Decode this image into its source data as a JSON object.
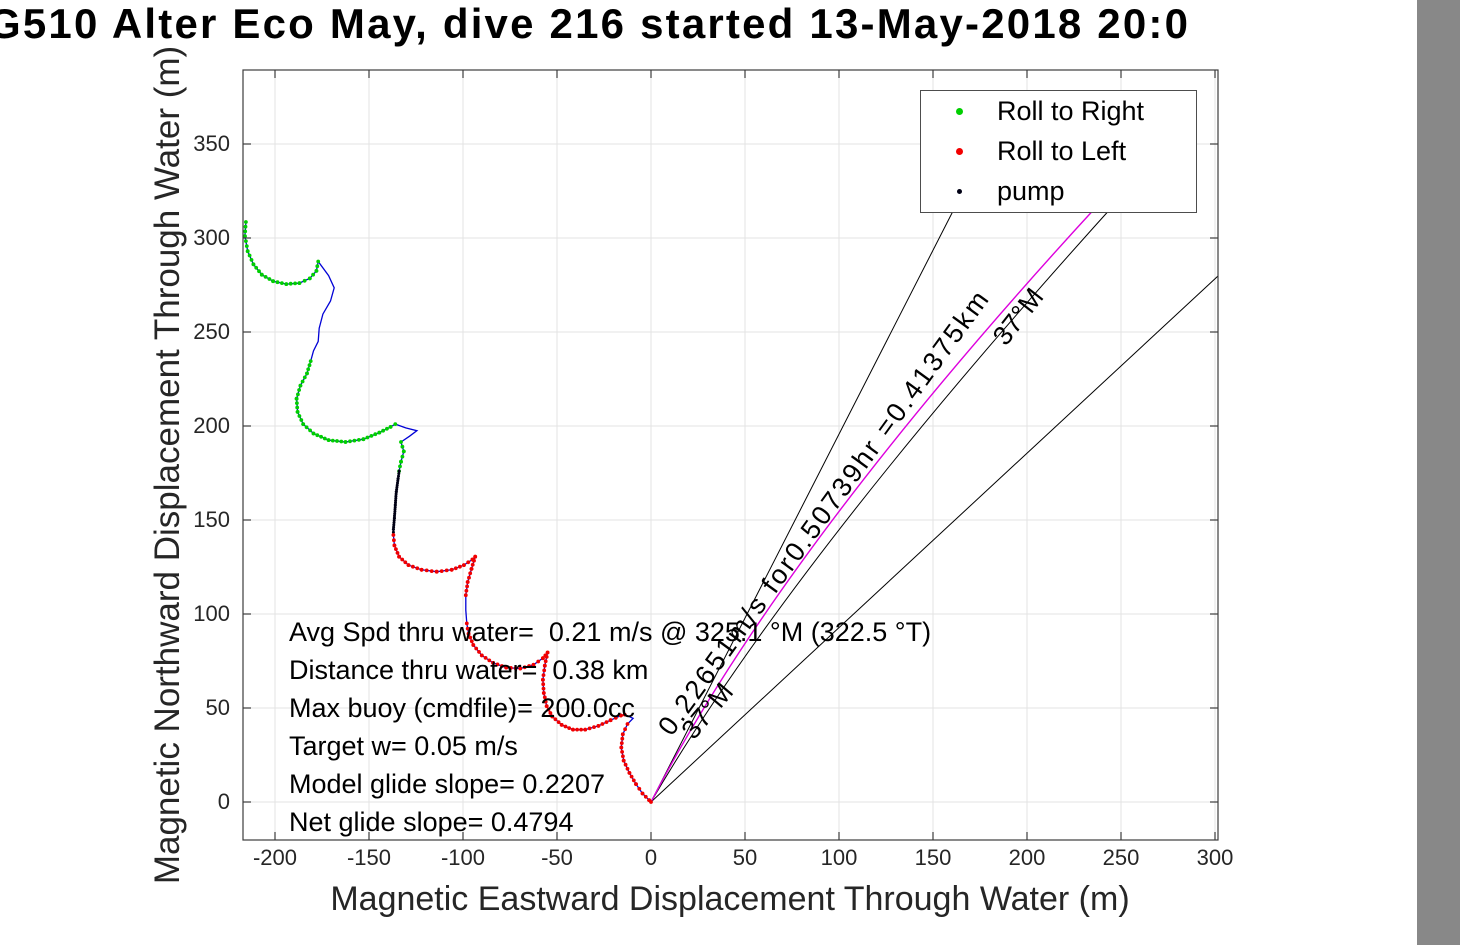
{
  "chart_data": {
    "type": "line",
    "title": "G510 Alter Eco May, dive 216 started 13-May-2018 20:0",
    "xlabel": "Magnetic Eastward Displacement Through Water (m)",
    "ylabel": "Magnetic Northward Displacement Through Water (m)",
    "xlim": [
      -216,
      302
    ],
    "ylim": [
      -20,
      389
    ],
    "grid": true,
    "x_ticks": [
      -200,
      -150,
      -100,
      -50,
      0,
      50,
      100,
      150,
      200,
      250,
      300
    ],
    "y_ticks": [
      0,
      50,
      100,
      150,
      200,
      250,
      300,
      350
    ],
    "legend": {
      "position": "northeast",
      "items": [
        {
          "label": "Roll to Right",
          "color": "#00cf00"
        },
        {
          "label": "Roll to Left",
          "color": "#f20000"
        },
        {
          "label": "pump",
          "color": "#000014"
        }
      ]
    },
    "stats_text": [
      "Avg Spd thru water=  0.21 m/s @ 325.1 °M (322.5 °T)",
      "Distance thru water=  0.38 km",
      "Max buoy (cmdfile)= 200.0cc",
      "Target w= 0.05 m/s",
      "Model glide slope= 0.2207",
      "Net glide slope= 0.4794"
    ],
    "rotated_labels": {
      "displacement": "0.22651m/s for0.50739hr =0.41375km",
      "bearing_low": "37°M",
      "bearing_high": "37°M"
    },
    "bearing_lines": [
      {
        "name": "steep-black-line",
        "color": "#000000"
      },
      {
        "name": "displacement-vector-magenta",
        "color": "#dd00dd"
      },
      {
        "name": "black-line-near-vector",
        "color": "#000000"
      },
      {
        "name": "shallow-black-line",
        "color": "#000000"
      }
    ],
    "track": {
      "line_color": "#0202d6",
      "marker_colors": {
        "g": "#00cf00",
        "r": "#f20000",
        "k": "#000014"
      },
      "marker_legend": {
        "g": "Roll to Right",
        "r": "Roll to Left",
        "k": "pump"
      },
      "points": [
        [
          -215.5,
          308.5,
          "g"
        ],
        [
          -216,
          301,
          "g"
        ],
        [
          -214.5,
          293,
          "g"
        ],
        [
          -211.5,
          286,
          "g"
        ],
        [
          -207,
          280.5,
          "g"
        ],
        [
          -201,
          277,
          "g"
        ],
        [
          -194,
          275.5,
          "g"
        ],
        [
          -187,
          276,
          "g"
        ],
        [
          -181.5,
          278.5,
          "g"
        ],
        [
          -178,
          282.5,
          "g"
        ],
        [
          -177,
          287.5,
          "n"
        ],
        [
          -171.5,
          280,
          "n"
        ],
        [
          -168.5,
          273.5,
          "n"
        ],
        [
          -170.5,
          266.5,
          "n"
        ],
        [
          -174.5,
          259.5,
          "n"
        ],
        [
          -176.5,
          252,
          "n"
        ],
        [
          -177,
          245,
          "n"
        ],
        [
          -179.5,
          240,
          "n"
        ],
        [
          -181,
          234.5,
          "g"
        ],
        [
          -183,
          228,
          "g"
        ],
        [
          -186.5,
          221.5,
          "g"
        ],
        [
          -188.5,
          214.5,
          "g"
        ],
        [
          -188,
          207.5,
          "g"
        ],
        [
          -185,
          201,
          "g"
        ],
        [
          -179.5,
          196,
          "g"
        ],
        [
          -171.5,
          192.5,
          "g"
        ],
        [
          -162.5,
          191.5,
          "g"
        ],
        [
          -153,
          193,
          "g"
        ],
        [
          -144.5,
          196.5,
          "g"
        ],
        [
          -138.5,
          199.5,
          "g"
        ],
        [
          -136,
          201,
          "n"
        ],
        [
          -130.5,
          199,
          "n"
        ],
        [
          -124.5,
          197.5,
          "n"
        ],
        [
          -128.5,
          194.5,
          "n"
        ],
        [
          -133,
          191.5,
          "g"
        ],
        [
          -131.5,
          186.5,
          "g"
        ],
        [
          -133,
          181,
          "g"
        ],
        [
          -134,
          176,
          "k"
        ],
        [
          -134.5,
          172,
          "k"
        ],
        [
          -135.5,
          165,
          "k"
        ],
        [
          -136,
          158,
          "k"
        ],
        [
          -136.5,
          151,
          "k"
        ],
        [
          -137,
          145,
          "k"
        ],
        [
          -137,
          142,
          "r"
        ],
        [
          -136.5,
          136.5,
          "r"
        ],
        [
          -134,
          130.5,
          "r"
        ],
        [
          -129,
          126,
          "r"
        ],
        [
          -122,
          123.5,
          "r"
        ],
        [
          -114,
          122.5,
          "r"
        ],
        [
          -106,
          123.5,
          "r"
        ],
        [
          -99.5,
          126,
          "r"
        ],
        [
          -95,
          129,
          "r"
        ],
        [
          -93.5,
          130.5,
          "r"
        ],
        [
          -95.5,
          124,
          "r"
        ],
        [
          -97.5,
          117,
          "r"
        ],
        [
          -98.5,
          110,
          "n"
        ],
        [
          -98.5,
          102,
          "n"
        ],
        [
          -98,
          95,
          "r"
        ],
        [
          -97,
          89.5,
          "r"
        ],
        [
          -94.5,
          83.5,
          "r"
        ],
        [
          -90,
          78,
          "r"
        ],
        [
          -84,
          74,
          "r"
        ],
        [
          -77,
          71.5,
          "r"
        ],
        [
          -69.5,
          71,
          "r"
        ],
        [
          -62.5,
          73,
          "r"
        ],
        [
          -57.5,
          76.5,
          "r"
        ],
        [
          -55,
          79.5,
          "r"
        ],
        [
          -56.5,
          72.5,
          "r"
        ],
        [
          -57.5,
          65,
          "r"
        ],
        [
          -57,
          58,
          "r"
        ],
        [
          -55.5,
          51,
          "r"
        ],
        [
          -52.5,
          45.5,
          "r"
        ],
        [
          -47.5,
          41,
          "r"
        ],
        [
          -41.5,
          38.5,
          "r"
        ],
        [
          -35,
          38.5,
          "r"
        ],
        [
          -28,
          40.5,
          "r"
        ],
        [
          -21.5,
          43.5,
          "r"
        ],
        [
          -16,
          46,
          "r"
        ],
        [
          -14,
          46.5,
          "n"
        ],
        [
          -9.5,
          44.5,
          "n"
        ],
        [
          -12.5,
          41.5,
          "r"
        ],
        [
          -15,
          36,
          "r"
        ],
        [
          -15.8,
          29,
          "r"
        ],
        [
          -14.5,
          22,
          "r"
        ],
        [
          -11.5,
          15.5,
          "r"
        ],
        [
          -8,
          9.5,
          "r"
        ],
        [
          -4.5,
          4.5,
          "r"
        ],
        [
          -1,
          1,
          "r"
        ],
        [
          0,
          0,
          "r"
        ]
      ]
    }
  }
}
